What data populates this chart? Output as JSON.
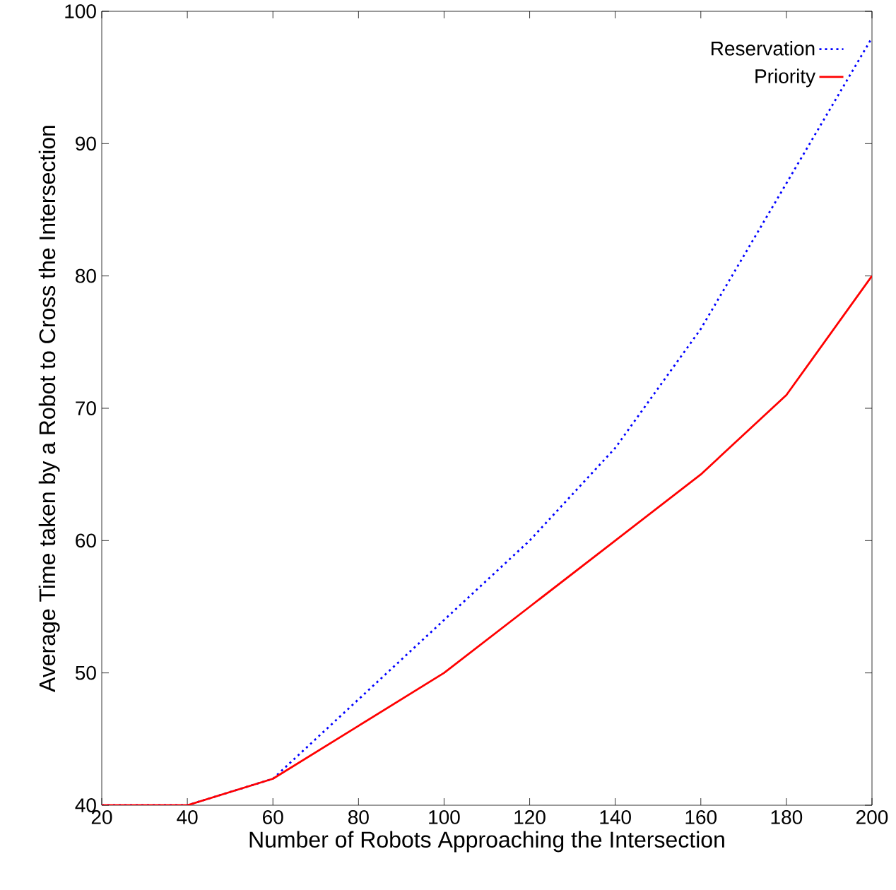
{
  "chart_data": {
    "type": "line",
    "xlabel": "Number of Robots Approaching the Intersection",
    "ylabel": "Average Time taken by a Robot to Cross the Intersection",
    "x": [
      20,
      40,
      60,
      80,
      100,
      120,
      140,
      160,
      180,
      200
    ],
    "series": [
      {
        "name": "Reservation",
        "color": "#0000ff",
        "line_style": "dotted",
        "values": [
          40,
          40,
          42,
          48,
          54,
          60,
          67,
          76,
          87,
          98
        ]
      },
      {
        "name": "Priority",
        "color": "#ff0000",
        "line_style": "solid",
        "values": [
          40,
          40,
          42,
          46,
          50,
          55,
          60,
          65,
          71,
          80
        ]
      }
    ],
    "xlim": [
      20,
      200
    ],
    "xticks": [
      20,
      40,
      60,
      80,
      100,
      120,
      140,
      160,
      180,
      200
    ],
    "ylim": [
      40,
      100
    ],
    "yticks": [
      40,
      50,
      60,
      70,
      80,
      90,
      100
    ],
    "grid": false,
    "legend": "top right",
    "marker": "none"
  }
}
